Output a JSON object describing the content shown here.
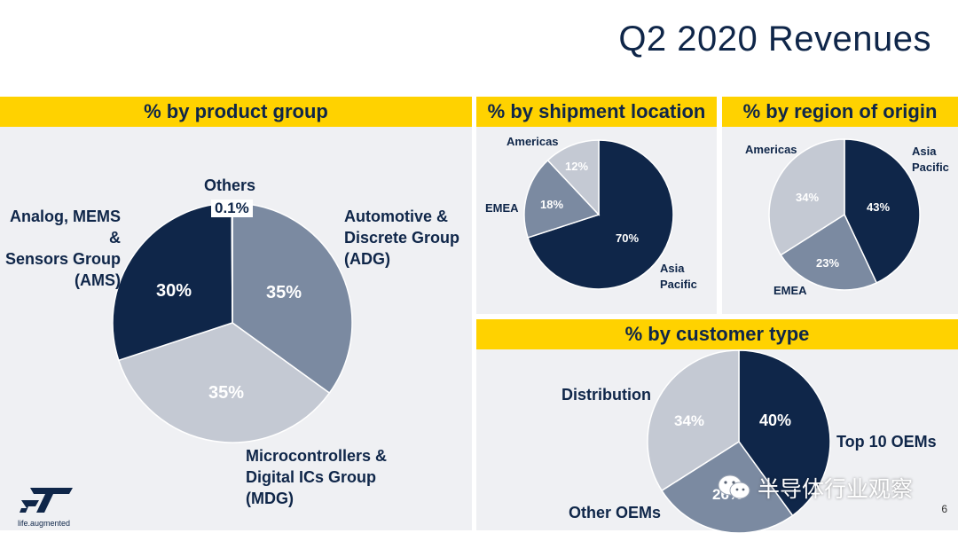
{
  "page": {
    "title": "Q2 2020 Revenues",
    "tagline": "life.augmented",
    "page_number": "6",
    "watermark": "半导体行业观察"
  },
  "colors": {
    "navy": "#0f2649",
    "steel": "#7b8aa1",
    "light": "#c4c9d3",
    "band": "#ffd200",
    "panel": "#eff0f3"
  },
  "chart_data": [
    {
      "type": "pie",
      "title": "% by product group",
      "slices": [
        {
          "label": "Automotive &\nDiscrete Group\n(ADG)",
          "value": 35,
          "value_label": "35%",
          "color": "#7b8aa1"
        },
        {
          "label": "Microcontrollers &\nDigital ICs Group\n(MDG)",
          "value": 35,
          "value_label": "35%",
          "color": "#c4c9d3"
        },
        {
          "label": "Analog, MEMS &\nSensors Group\n(AMS)",
          "value": 30,
          "value_label": "30%",
          "color": "#0f2649"
        },
        {
          "label": "Others",
          "value": 0.1,
          "value_label": "0.1%",
          "color": "#0f2649"
        }
      ]
    },
    {
      "type": "pie",
      "title": "% by shipment location",
      "slices": [
        {
          "label": "Asia\nPacific",
          "value": 70,
          "value_label": "70%",
          "color": "#0f2649"
        },
        {
          "label": "EMEA",
          "value": 18,
          "value_label": "18%",
          "color": "#7b8aa1"
        },
        {
          "label": "Americas",
          "value": 12,
          "value_label": "12%",
          "color": "#c4c9d3"
        }
      ]
    },
    {
      "type": "pie",
      "title": "% by region of origin",
      "slices": [
        {
          "label": "Asia\nPacific",
          "value": 43,
          "value_label": "43%",
          "color": "#0f2649"
        },
        {
          "label": "EMEA",
          "value": 23,
          "value_label": "23%",
          "color": "#7b8aa1"
        },
        {
          "label": "Americas",
          "value": 34,
          "value_label": "34%",
          "color": "#c4c9d3"
        }
      ]
    },
    {
      "type": "pie",
      "title": "% by customer type",
      "slices": [
        {
          "label": "Top 10 OEMs",
          "value": 40,
          "value_label": "40%",
          "color": "#0f2649"
        },
        {
          "label": "Other OEMs",
          "value": 26,
          "value_label": "26%",
          "color": "#7b8aa1"
        },
        {
          "label": "Distribution",
          "value": 34,
          "value_label": "34%",
          "color": "#c4c9d3"
        }
      ]
    }
  ]
}
